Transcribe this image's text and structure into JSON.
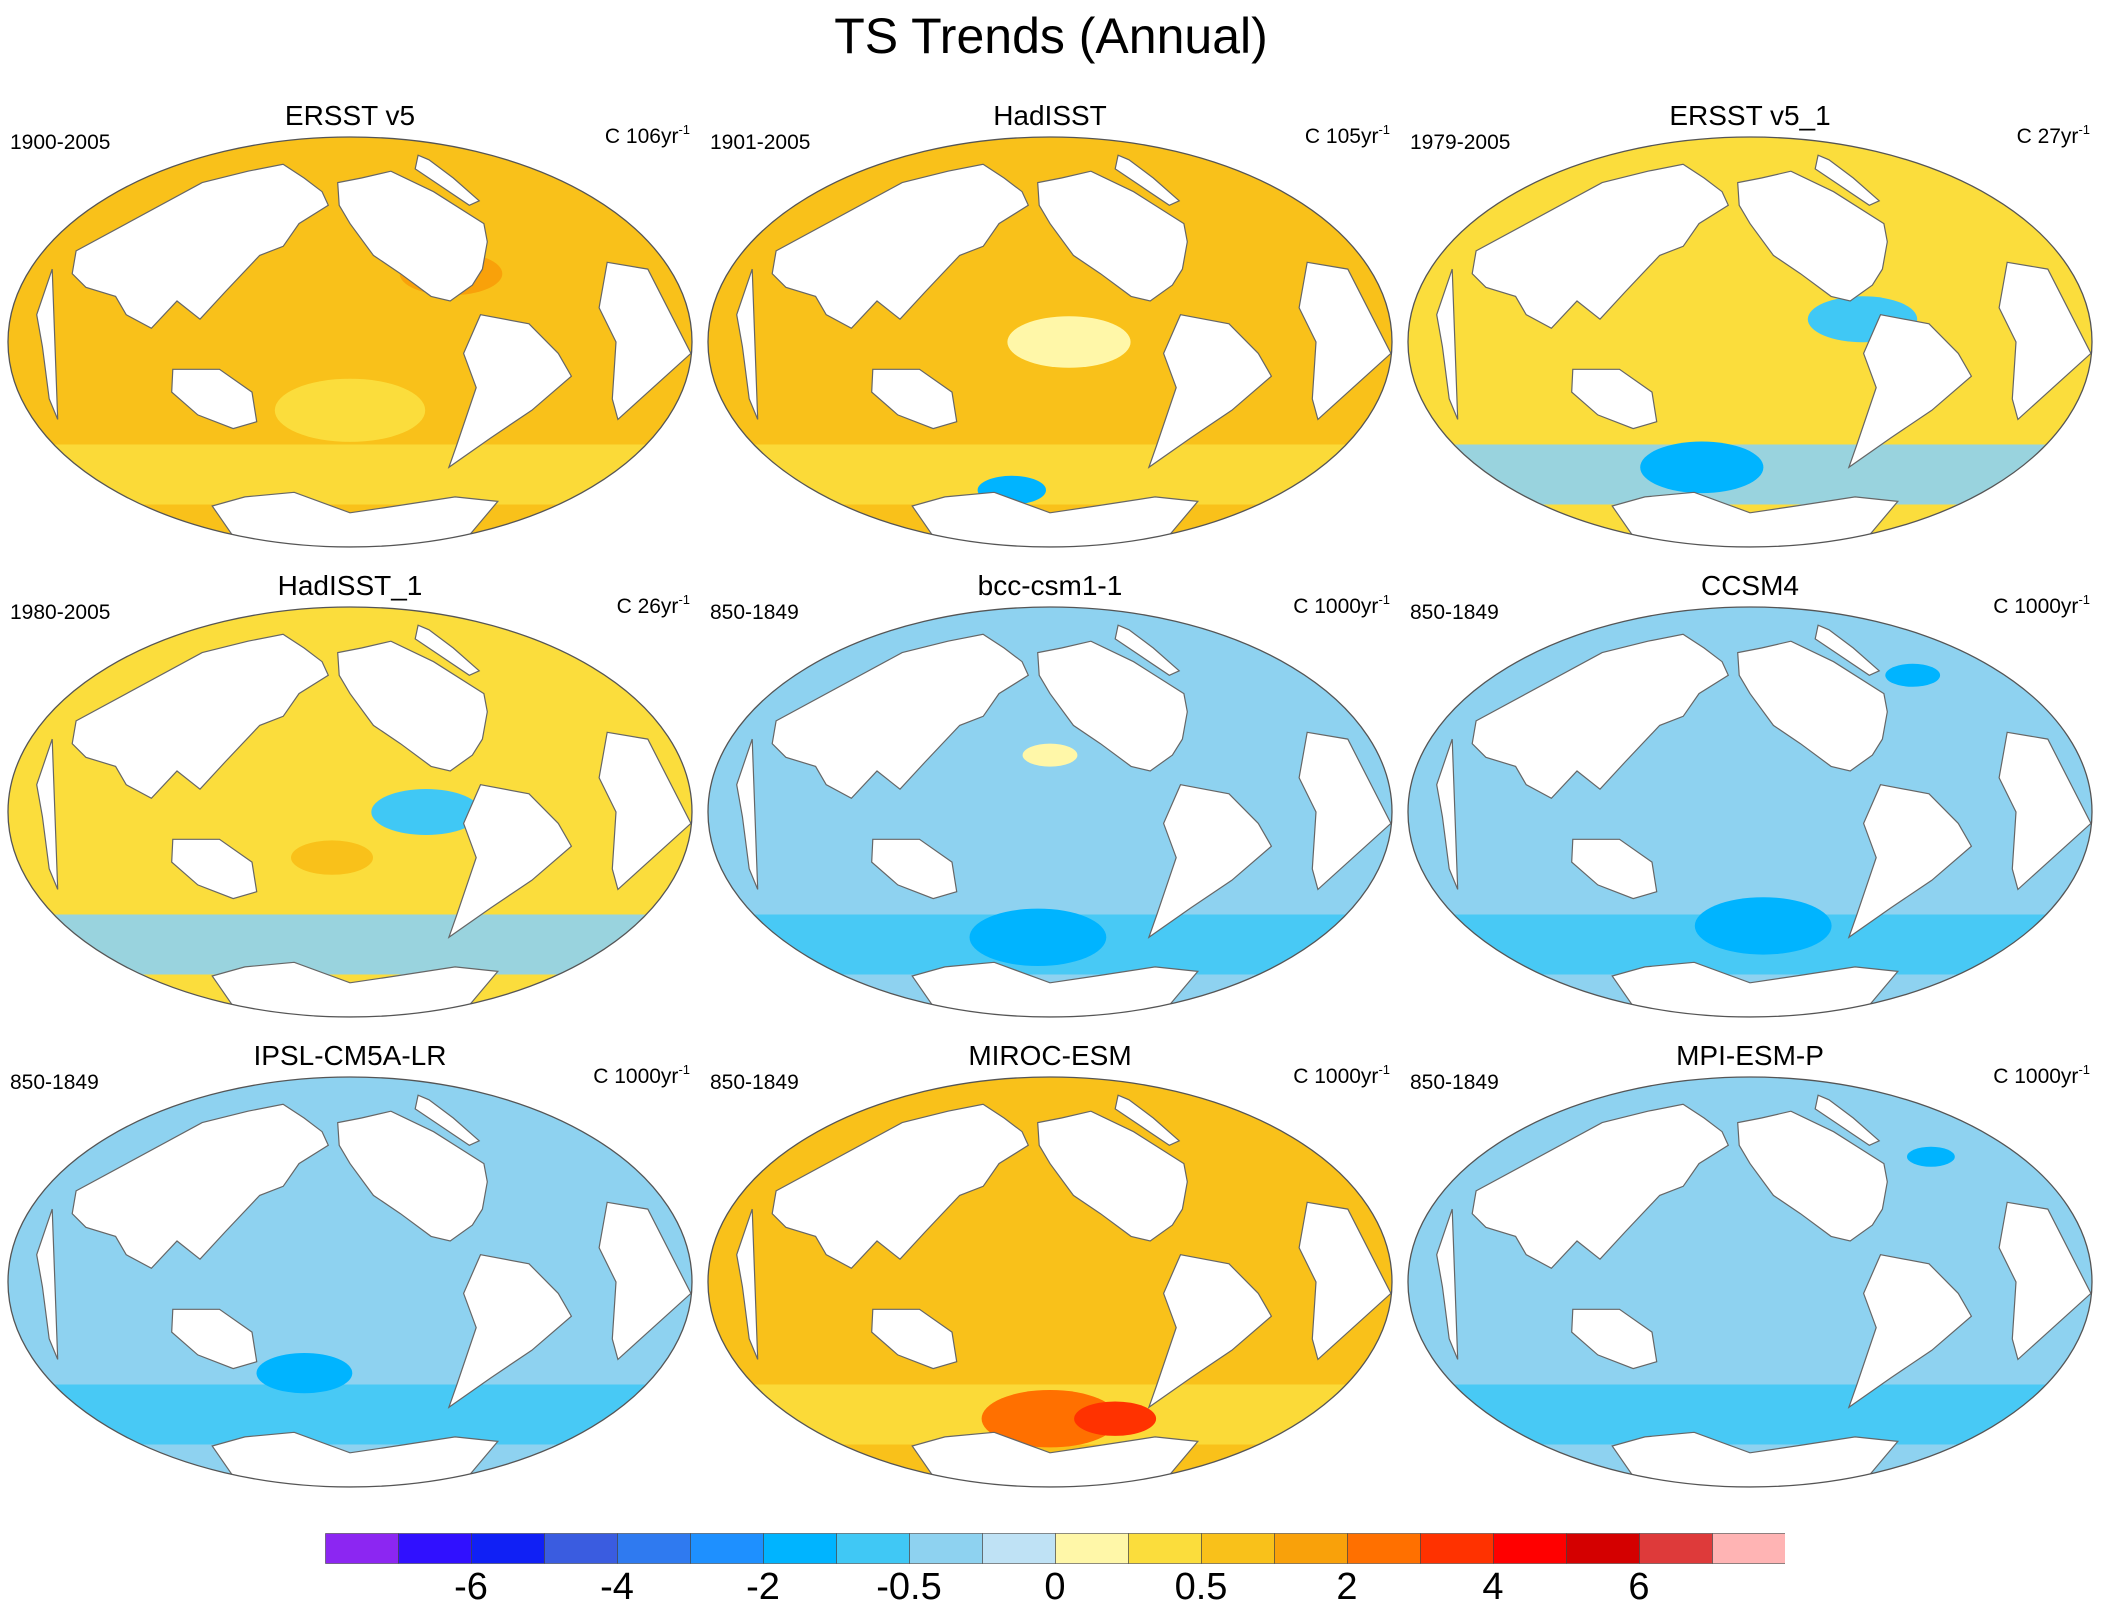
{
  "title": "TS Trends (Annual)",
  "chart_data": {
    "type": "heatmap",
    "variable": "TS",
    "projection": "Robinson (Pacific-centered)",
    "panels": [
      {
        "name": "ERSST v5",
        "period": "1900-2005",
        "trend_units": "C",
        "trend_len": "106yr",
        "trend_exp": "-1",
        "pattern": "warm",
        "patches": [
          {
            "lon": 0,
            "lat": -30,
            "r": 0.22,
            "level": 0.5
          },
          {
            "lon": 60,
            "lat": 30,
            "r": 0.15,
            "level": 2
          }
        ]
      },
      {
        "name": "HadISST",
        "period": "1901-2005",
        "trend_units": "C",
        "trend_len": "105yr",
        "trend_exp": "-1",
        "pattern": "warm",
        "patches": [
          {
            "lon": 10,
            "lat": 0,
            "r": 0.18,
            "level": 0.25
          },
          {
            "lon": -40,
            "lat": -65,
            "r": 0.1,
            "level": -1
          }
        ]
      },
      {
        "name": "ERSST v5_1",
        "period": "1979-2005",
        "trend_units": "C",
        "trend_len": "27yr",
        "trend_exp": "-1",
        "pattern": "mixed",
        "patches": [
          {
            "lon": 60,
            "lat": 10,
            "r": 0.16,
            "level": -0.75
          },
          {
            "lon": -40,
            "lat": -55,
            "r": 0.18,
            "level": -1
          }
        ]
      },
      {
        "name": "HadISST_1",
        "period": "1980-2005",
        "trend_units": "C",
        "trend_len": "26yr",
        "trend_exp": "-1",
        "pattern": "mixed",
        "patches": [
          {
            "lon": 40,
            "lat": 0,
            "r": 0.16,
            "level": -0.75
          },
          {
            "lon": -10,
            "lat": -20,
            "r": 0.12,
            "level": 1
          }
        ]
      },
      {
        "name": "bcc-csm1-1",
        "period": "850-1849",
        "trend_units": "C",
        "trend_len": "1000yr",
        "trend_exp": "-1",
        "pattern": "cool",
        "patches": [
          {
            "lon": 0,
            "lat": 25,
            "r": 0.08,
            "level": 0.25
          },
          {
            "lon": -10,
            "lat": -55,
            "r": 0.2,
            "level": -1
          }
        ]
      },
      {
        "name": "CCSM4",
        "period": "850-1849",
        "trend_units": "C",
        "trend_len": "1000yr",
        "trend_exp": "-1",
        "pattern": "cool",
        "patches": [
          {
            "lon": 150,
            "lat": 60,
            "r": 0.08,
            "level": -1.5
          },
          {
            "lon": 10,
            "lat": -50,
            "r": 0.2,
            "level": -1
          }
        ]
      },
      {
        "name": "IPSL-CM5A-LR",
        "period": "850-1849",
        "trend_units": "C",
        "trend_len": "1000yr",
        "trend_exp": "-1",
        "pattern": "cool",
        "patches": [
          {
            "lon": -30,
            "lat": -40,
            "r": 0.14,
            "level": -1
          }
        ]
      },
      {
        "name": "MIROC-ESM",
        "period": "850-1849",
        "trend_units": "C",
        "trend_len": "1000yr",
        "trend_exp": "-1",
        "pattern": "warm",
        "patches": [
          {
            "lon": 0,
            "lat": -60,
            "r": 0.2,
            "level": 3
          },
          {
            "lon": 60,
            "lat": -60,
            "r": 0.12,
            "level": 4
          }
        ]
      },
      {
        "name": "MPI-ESM-P",
        "period": "850-1849",
        "trend_units": "C",
        "trend_len": "1000yr",
        "trend_exp": "-1",
        "pattern": "cool",
        "patches": [
          {
            "lon": 150,
            "lat": 55,
            "r": 0.07,
            "level": -1.5
          }
        ]
      }
    ],
    "colorbar": {
      "levels": [
        -7,
        -6,
        -5,
        -4,
        -3,
        -2,
        -1,
        -0.5,
        -0.25,
        0,
        0.25,
        0.5,
        1,
        2,
        3,
        4,
        5,
        6,
        7
      ],
      "colors": [
        "#8c26f2",
        "#3010ff",
        "#1020f5",
        "#3a5ce0",
        "#2f7af0",
        "#1e90ff",
        "#00b4ff",
        "#40c8f5",
        "#8ed2f0",
        "#bfe2f5",
        "#fff7a8",
        "#fbdd3c",
        "#f9c11a",
        "#f9a10a",
        "#ff7000",
        "#ff3200",
        "#ff0000",
        "#d40000",
        "#de3a3a",
        "#ffb4b4"
      ],
      "tick_labels": [
        "-6",
        "-4",
        "-2",
        "-0.5",
        "0",
        "0.5",
        "2",
        "4",
        "6"
      ]
    }
  }
}
